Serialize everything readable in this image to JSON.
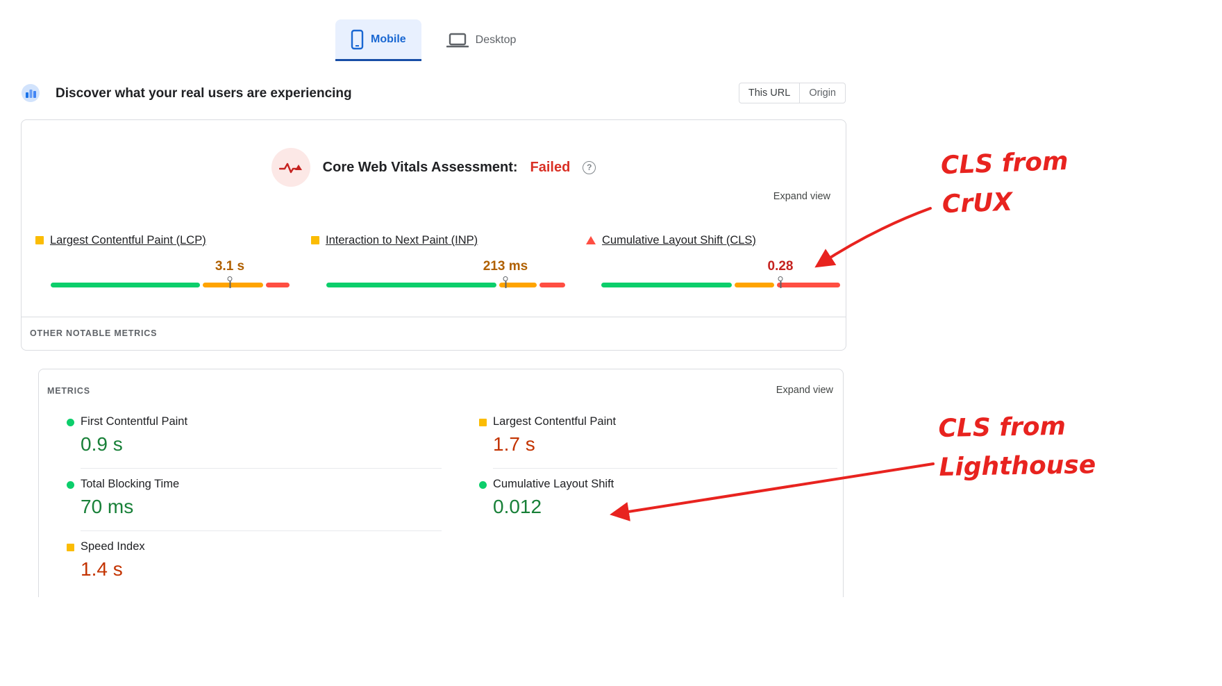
{
  "tabs": {
    "mobile_label": "Mobile",
    "desktop_label": "Desktop",
    "active_color": "#1967d2"
  },
  "field_section": {
    "title": "Discover what your real users are experiencing",
    "scope_toggle": {
      "this_url_label": "This URL",
      "origin_label": "Origin"
    }
  },
  "cwv": {
    "assessment_label": "Core Web Vitals Assessment:",
    "assessment_result": "Failed",
    "result_color": "#d93025",
    "help_icon_glyph": "?",
    "expand_view_label": "Expand view",
    "other_metrics_label": "OTHER NOTABLE METRICS",
    "metrics": [
      {
        "label": "Largest Contentful Paint (LCP)",
        "value": "3.1 s",
        "value_color": "#b06000",
        "icon_shape": "square",
        "icon_color": "#fbbc04",
        "bar": {
          "segments": [
            {
              "name": "good",
              "pct": 64,
              "color": "#0cce6b"
            },
            {
              "name": "needs-improvement",
              "pct": 26,
              "color": "#ffa400"
            },
            {
              "name": "poor",
              "pct": 10,
              "color": "#ff4e42"
            }
          ],
          "marker_pct": 75
        }
      },
      {
        "label": "Interaction to Next Paint (INP)",
        "value": "213 ms",
        "value_color": "#b06000",
        "icon_shape": "square",
        "icon_color": "#fbbc04",
        "bar": {
          "segments": [
            {
              "name": "good",
              "pct": 73,
              "color": "#0cce6b"
            },
            {
              "name": "needs-improvement",
              "pct": 16,
              "color": "#ffa400"
            },
            {
              "name": "poor",
              "pct": 11,
              "color": "#ff4e42"
            }
          ],
          "marker_pct": 75
        }
      },
      {
        "label": "Cumulative Layout Shift (CLS)",
        "value": "0.28",
        "value_color": "#c5221f",
        "icon_shape": "triangle",
        "icon_color": "#ff4e42",
        "bar": {
          "segments": [
            {
              "name": "good",
              "pct": 56,
              "color": "#0cce6b"
            },
            {
              "name": "needs-improvement",
              "pct": 17,
              "color": "#ffa400"
            },
            {
              "name": "poor",
              "pct": 27,
              "color": "#ff4e42"
            }
          ],
          "marker_pct": 75
        }
      }
    ]
  },
  "lab": {
    "header_label": "METRICS",
    "expand_view_label": "Expand view",
    "left_metrics": [
      {
        "label": "First Contentful Paint",
        "value": "0.9 s",
        "value_color": "#188038",
        "icon_shape": "circle",
        "icon_color": "#0cce6b"
      },
      {
        "label": "Total Blocking Time",
        "value": "70 ms",
        "value_color": "#188038",
        "icon_shape": "circle",
        "icon_color": "#0cce6b"
      },
      {
        "label": "Speed Index",
        "value": "1.4 s",
        "value_color": "#c33300",
        "icon_shape": "square",
        "icon_color": "#fbbc04"
      }
    ],
    "right_metrics": [
      {
        "label": "Largest Contentful Paint",
        "value": "1.7 s",
        "value_color": "#c33300",
        "icon_shape": "square",
        "icon_color": "#fbbc04"
      },
      {
        "label": "Cumulative Layout Shift",
        "value": "0.012",
        "value_color": "#188038",
        "icon_shape": "circle",
        "icon_color": "#0cce6b"
      }
    ]
  },
  "annotations": {
    "color": "#e8231f",
    "crux_note": {
      "line1": "CLS from",
      "line2": "CrUX"
    },
    "lighthouse_note": {
      "line1": "CLS from",
      "line2": "Lighthouse"
    }
  }
}
